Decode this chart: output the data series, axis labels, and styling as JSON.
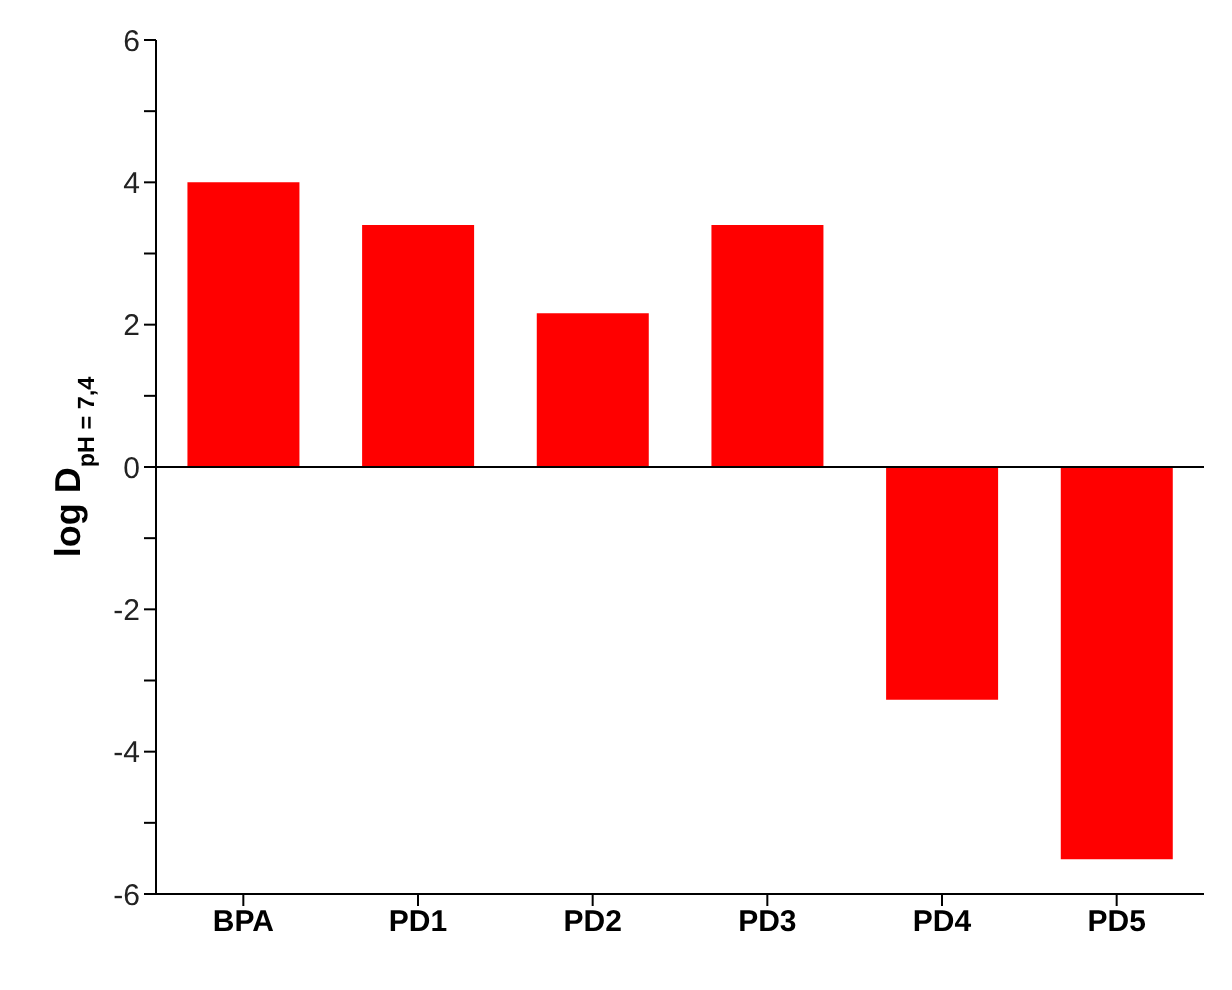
{
  "chart_data": {
    "type": "bar",
    "ylabel": "log D$_{pH = 7,4}$",
    "categories": [
      "BPA",
      "PD1",
      "PD2",
      "PD3",
      "PD4",
      "PD5"
    ],
    "values": [
      4.0,
      3.4,
      2.16,
      3.4,
      -3.27,
      -5.51
    ],
    "color": "#ff0000",
    "ylim": [
      -6,
      6
    ],
    "yticks": [
      -6,
      {
        "value": -5,
        "label": null
      },
      -4,
      {
        "value": -3,
        "label": null
      },
      -2,
      {
        "value": -1,
        "label": null
      },
      0,
      {
        "value": 1,
        "label": null
      },
      2,
      {
        "value": 3,
        "label": null
      },
      4,
      {
        "value": 5,
        "label": null
      },
      6
    ],
    "ref_lines": [
      {
        "axis": "y",
        "value": 0,
        "color": "#000000"
      }
    ],
    "grid": false,
    "legend": false
  }
}
